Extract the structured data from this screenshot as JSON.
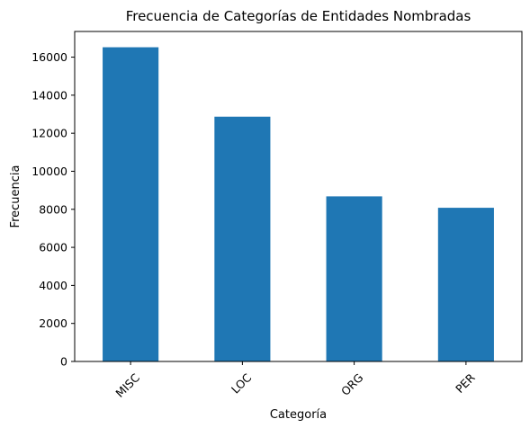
{
  "chart_data": {
    "type": "bar",
    "title": "Frecuencia de Categorías de Entidades Nombradas",
    "xlabel": "Categoría",
    "ylabel": "Frecuencia",
    "categories": [
      "MISC",
      "LOC",
      "ORG",
      "PER"
    ],
    "values": [
      16520,
      12870,
      8680,
      8080
    ],
    "ylim": [
      0,
      17350
    ],
    "yticks": [
      0,
      2000,
      4000,
      6000,
      8000,
      10000,
      12000,
      14000,
      16000
    ],
    "grid": false,
    "legend": "none",
    "bar_color": "#1f77b4",
    "x_tick_rotation": 45
  }
}
